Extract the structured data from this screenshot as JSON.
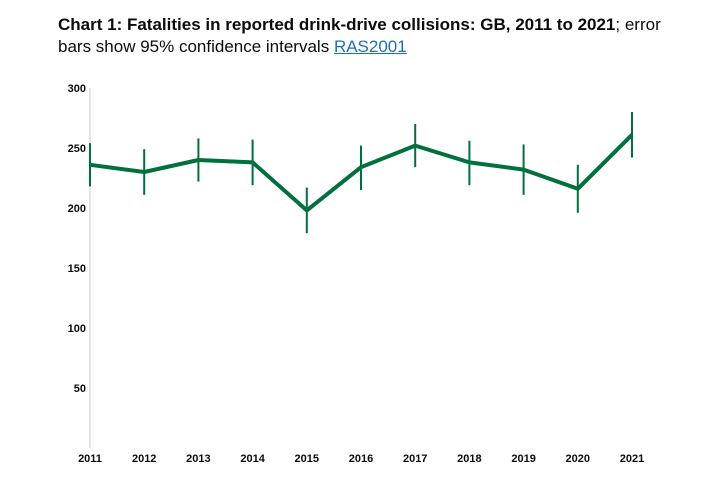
{
  "title": {
    "bold": "Chart 1: Fatalities in reported drink-drive collisions: GB, 2011 to 2021",
    "rest": "; error bars show 95% confidence intervals ",
    "link": "RAS2001"
  },
  "chart_data": {
    "type": "line",
    "title": "Chart 1: Fatalities in reported drink-drive collisions: GB, 2011 to 2021",
    "x": [
      "2011",
      "2012",
      "2013",
      "2014",
      "2015",
      "2016",
      "2017",
      "2018",
      "2019",
      "2020",
      "2021"
    ],
    "series": [
      {
        "values": [
          236,
          230,
          240,
          238,
          198,
          234,
          252,
          238,
          232,
          216,
          261
        ],
        "lower": [
          218,
          211,
          222,
          219,
          179,
          215,
          234,
          219,
          211,
          196,
          242
        ],
        "upper": [
          254,
          249,
          258,
          257,
          217,
          252,
          270,
          256,
          253,
          236,
          280
        ]
      }
    ],
    "yticks": [
      50,
      100,
      150,
      200,
      250,
      300
    ],
    "ylim": [
      0,
      300
    ],
    "xlabel": "",
    "ylabel": "",
    "grid": false,
    "color": "#00703c"
  }
}
